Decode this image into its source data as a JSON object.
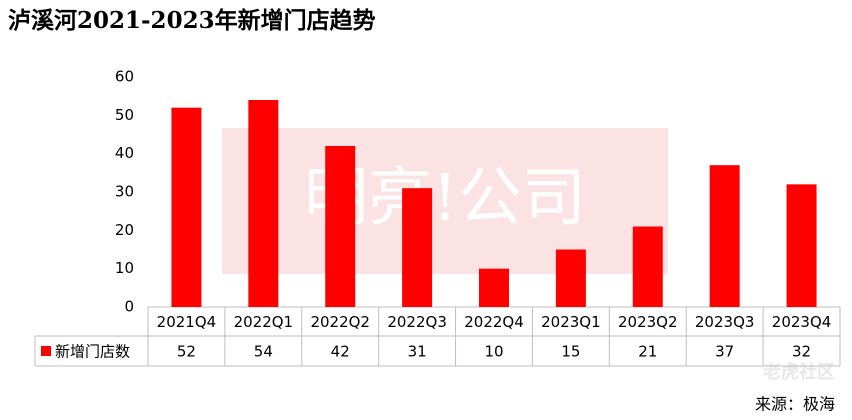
{
  "chart_data": {
    "type": "bar",
    "title": "泸溪河2021-2023年新增门店趋势",
    "categories": [
      "2021Q4",
      "2022Q1",
      "2022Q2",
      "2022Q3",
      "2022Q4",
      "2023Q1",
      "2023Q2",
      "2023Q3",
      "2023Q4"
    ],
    "series": [
      {
        "name": "新增门店数",
        "color": "#ff0000",
        "values": [
          52,
          54,
          42,
          31,
          10,
          15,
          21,
          37,
          32
        ]
      }
    ],
    "ylim": [
      0,
      60
    ],
    "yticks": [
      0,
      10,
      20,
      30,
      40,
      50,
      60
    ],
    "grid": false,
    "watermarks": [
      "明亮!公司",
      "老虎社区"
    ],
    "source": "来源：极海"
  }
}
